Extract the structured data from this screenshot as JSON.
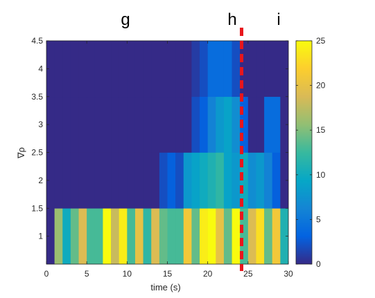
{
  "panel_labels": [
    "g",
    "h",
    "i"
  ],
  "chart_data": {
    "type": "heatmap",
    "xlabel": "time (s)",
    "ylabel": "∇ρ",
    "xlim": [
      0,
      30
    ],
    "ylim": [
      0.5,
      4.5
    ],
    "x_ticks": [
      0,
      5,
      10,
      15,
      20,
      25,
      30
    ],
    "x_tick_labels": [
      "0",
      "5",
      "10",
      "15",
      "20",
      "25",
      "30"
    ],
    "y_ticks": [
      1,
      1.5,
      2,
      2.5,
      3,
      3.5,
      4,
      4.5
    ],
    "y_tick_labels": [
      "1",
      "1.5",
      "2",
      "2.5",
      "3",
      "3.5",
      "4",
      "4.5"
    ],
    "colorbar": {
      "range": [
        0,
        25
      ],
      "ticks": [
        0,
        5,
        10,
        15,
        20,
        25
      ],
      "tick_labels": [
        "0",
        "5",
        "10",
        "15",
        "20",
        "25"
      ],
      "colormap": "parula"
    },
    "time_bins_s": [
      0.5,
      1.5,
      2.5,
      3.5,
      4.5,
      5.5,
      6.5,
      7.5,
      8.5,
      9.5,
      10.5,
      11.5,
      12.5,
      13.5,
      14.5,
      15.5,
      16.5,
      17.5,
      18.5,
      19.5,
      20.5,
      21.5,
      22.5,
      23.5,
      24.5,
      25.5,
      26.5,
      27.5,
      28.5,
      29.5
    ],
    "rows": [
      {
        "y_range": [
          0.5,
          1.5
        ],
        "values": [
          0,
          16,
          10,
          14,
          19,
          13,
          13,
          25,
          18,
          24,
          13,
          20,
          12,
          19,
          14,
          13,
          13,
          21,
          14,
          24,
          25,
          20,
          14,
          25,
          13,
          19,
          23,
          14,
          21,
          11
        ]
      },
      {
        "y_range": [
          1.5,
          2.5
        ],
        "values": [
          0,
          0,
          0,
          0,
          0,
          0,
          0,
          0,
          0,
          0,
          0,
          0,
          0,
          0,
          2,
          3,
          2,
          8,
          9,
          10,
          11,
          12,
          9,
          8,
          10,
          7,
          8,
          6,
          3,
          0
        ]
      },
      {
        "y_range": [
          2.5,
          3.5
        ],
        "values": [
          0,
          0,
          0,
          0,
          0,
          0,
          0,
          0,
          0,
          0,
          0,
          0,
          0,
          0,
          0,
          0,
          0,
          0,
          2,
          3,
          6,
          8,
          9,
          7,
          3,
          0,
          0,
          4,
          4,
          0
        ]
      },
      {
        "y_range": [
          3.5,
          4.5
        ],
        "values": [
          0,
          0,
          0,
          0,
          0,
          0,
          0,
          0,
          0,
          0,
          0,
          0,
          0,
          0,
          0,
          0,
          0,
          0,
          1,
          2,
          4,
          4,
          4,
          2,
          0,
          0,
          0,
          0,
          0,
          0
        ]
      }
    ],
    "marker_line": {
      "x": 24.2,
      "style": "dashed",
      "color": "#e8161c"
    }
  }
}
